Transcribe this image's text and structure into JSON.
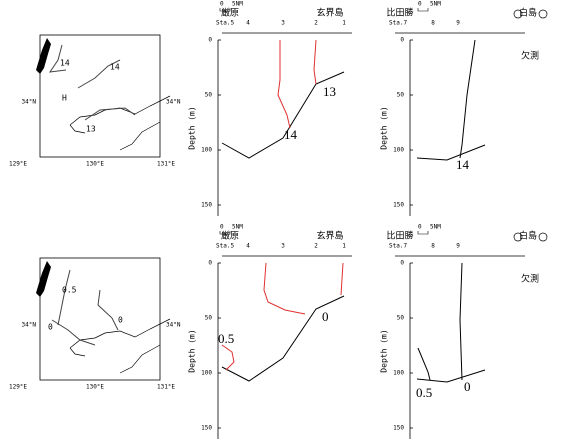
{
  "rows": [
    {
      "map": {
        "lon_labels": [
          "129°E",
          "130°E",
          "131°E"
        ],
        "lat_labels": [
          "34°N",
          "34°N"
        ],
        "contour_labels": [
          "14",
          "14",
          "13"
        ],
        "marker": "H"
      },
      "section1": {
        "scale_zero": "0",
        "scale_label": "5NM",
        "left_label": "厳原",
        "right_label": "玄界島",
        "station_prefix": "Sta.5",
        "stations": [
          "4",
          "3",
          "2",
          "1"
        ],
        "ylabel": "Depth (m)",
        "ylim": [
          0,
          160
        ],
        "yticks": [
          0,
          50,
          100,
          150
        ],
        "contour_labels": [
          "13",
          "14"
        ]
      },
      "section2": {
        "scale_zero": "0",
        "scale_label": "5NM",
        "left_label": "比田勝",
        "right_label": "白島",
        "station_prefix": "Sta.7",
        "stations": [
          "8",
          "9"
        ],
        "note": "欠測",
        "ylabel": "Depth (m)",
        "ylim": [
          0,
          160
        ],
        "yticks": [
          0,
          50,
          100,
          150
        ],
        "contour_labels": [
          "14"
        ]
      }
    },
    {
      "map": {
        "lon_labels": [
          "129°E",
          "130°E",
          "131°E"
        ],
        "lat_labels": [
          "34°N",
          "34°N"
        ],
        "contour_labels": [
          "0.5",
          "0",
          "0"
        ]
      },
      "section1": {
        "scale_zero": "0",
        "scale_label": "5NM",
        "left_label": "厳原",
        "right_label": "玄界島",
        "station_prefix": "Sta.5",
        "stations": [
          "4",
          "3",
          "2",
          "1"
        ],
        "ylabel": "Depth (m)",
        "ylim": [
          0,
          160
        ],
        "yticks": [
          0,
          50,
          100,
          150
        ],
        "contour_labels": [
          "0.5",
          "0"
        ]
      },
      "section2": {
        "scale_zero": "0",
        "scale_label": "5NM",
        "left_label": "比田勝",
        "right_label": "白島",
        "station_prefix": "Sta.7",
        "stations": [
          "8",
          "9"
        ],
        "note": "欠測",
        "ylabel": "Depth (m)",
        "ylim": [
          0,
          160
        ],
        "yticks": [
          0,
          50,
          100,
          150
        ],
        "contour_labels": [
          "0.5",
          "0"
        ]
      }
    }
  ]
}
